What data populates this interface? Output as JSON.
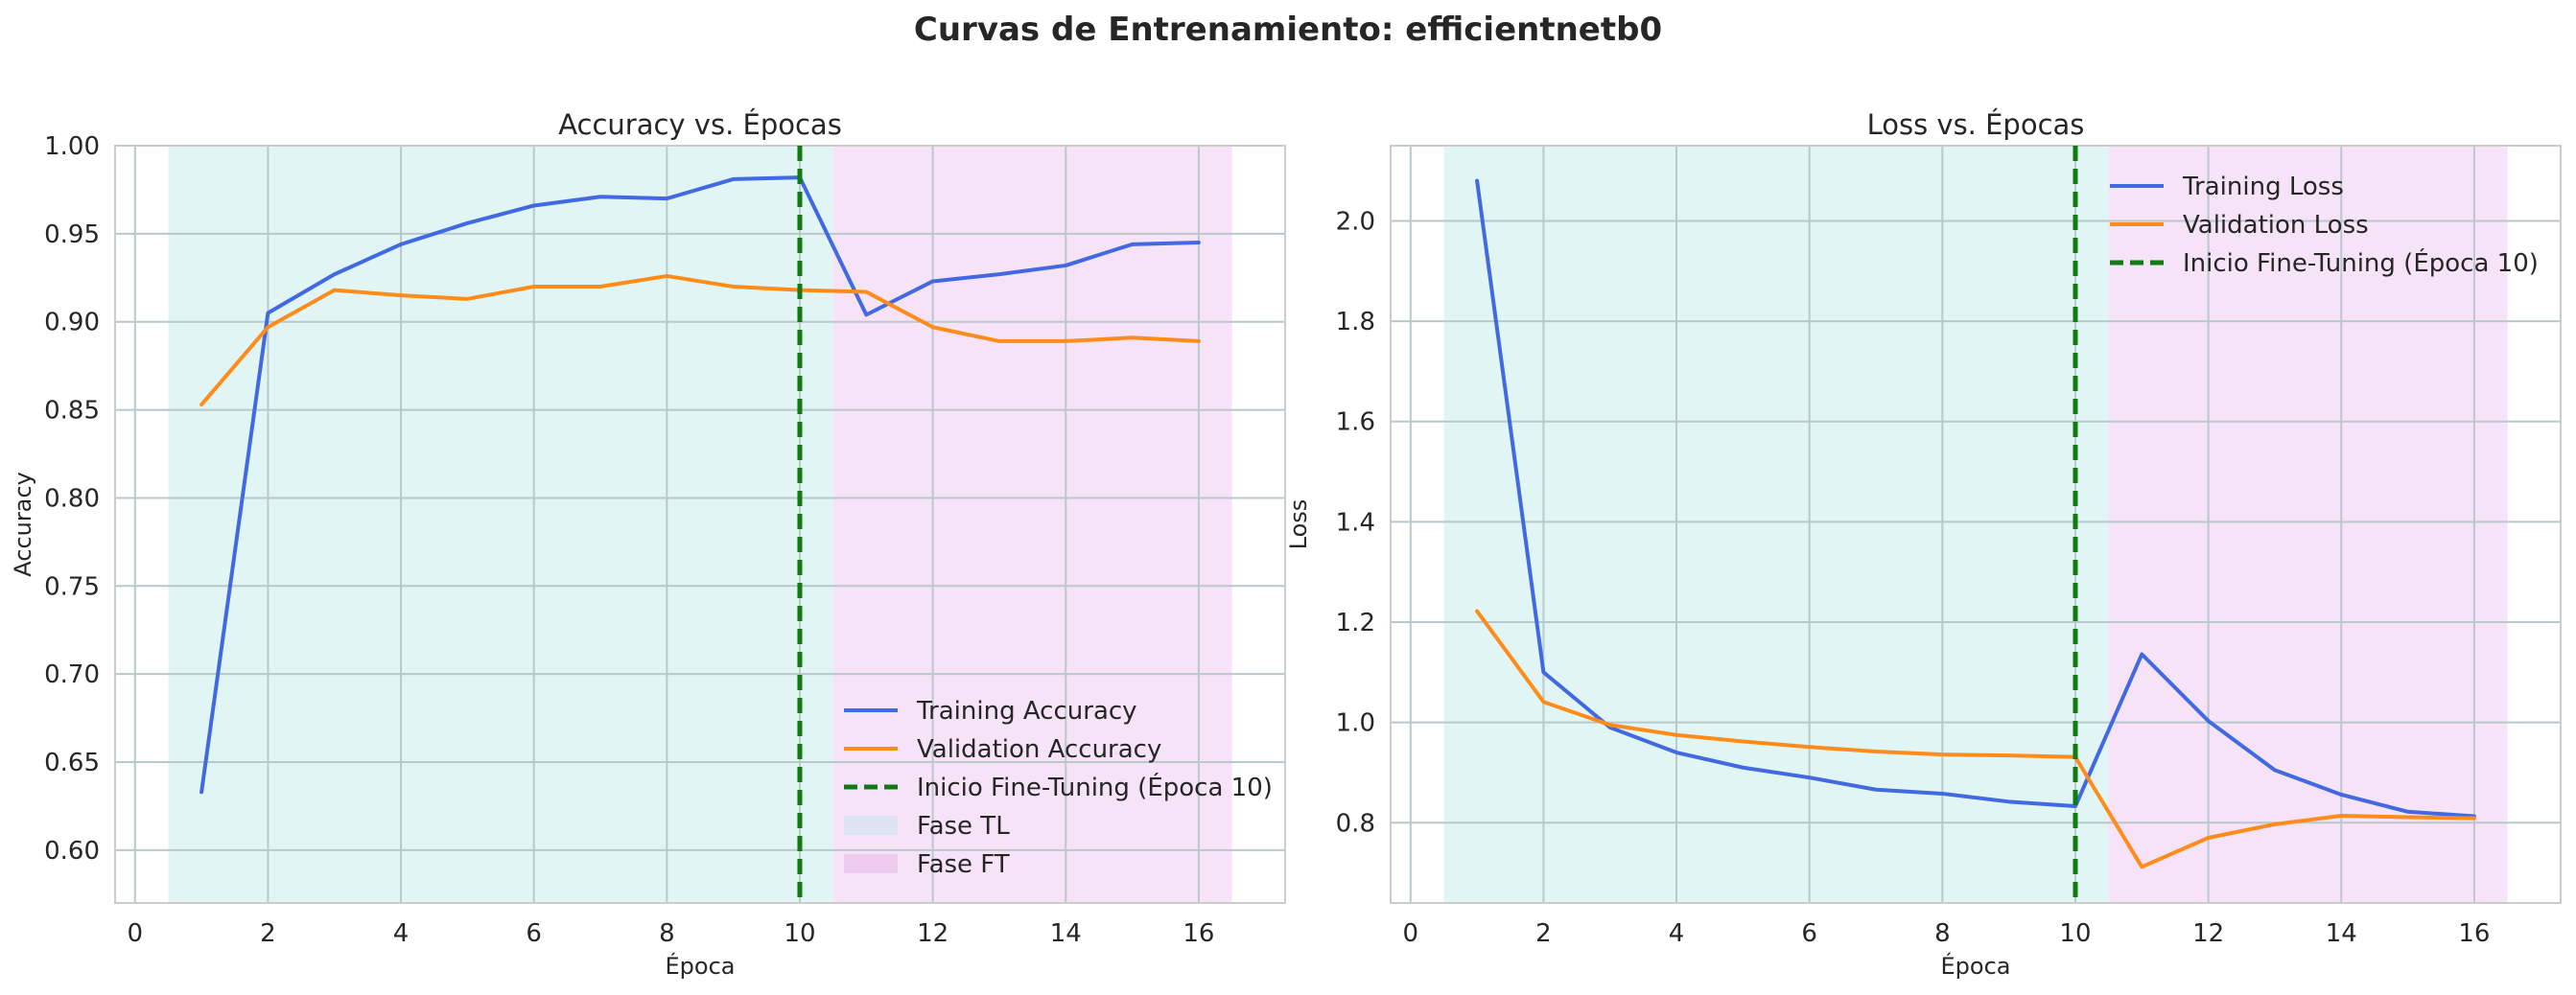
{
  "figure": {
    "title": "Curvas de Entrenamiento: efficientnetb0"
  },
  "colors": {
    "training": "#4169e1",
    "validation": "#ff8c1a",
    "finetune_line": "#127a12",
    "phase_tl": "#e1f5f4",
    "phase_ft": "#f6e3f7",
    "grid": "#b8c8cc",
    "axes_edge": "#cccccc",
    "text": "#262626"
  },
  "chart_data": [
    {
      "type": "line",
      "title": "Accuracy vs. Épocas",
      "xlabel": "Época",
      "ylabel": "Accuracy",
      "xlim": [
        -0.3,
        17.3
      ],
      "ylim": [
        0.57,
        1.0
      ],
      "xticks": [
        0,
        2,
        4,
        6,
        8,
        10,
        12,
        14,
        16
      ],
      "yticks": [
        0.6,
        0.65,
        0.7,
        0.75,
        0.8,
        0.85,
        0.9,
        0.95,
        1.0
      ],
      "ytick_labels": [
        "0.60",
        "0.65",
        "0.70",
        "0.75",
        "0.80",
        "0.85",
        "0.90",
        "0.95",
        "1.00"
      ],
      "grid": true,
      "legend_position": "lower-right",
      "phases": [
        {
          "name": "Fase TL",
          "x_start": 0.5,
          "x_end": 10.5,
          "color_key": "phase_tl"
        },
        {
          "name": "Fase FT",
          "x_start": 10.5,
          "x_end": 16.5,
          "color_key": "phase_ft"
        }
      ],
      "vline": {
        "x": 10,
        "label": "Inicio Fine-Tuning (Época 10)"
      },
      "x": [
        1,
        2,
        3,
        4,
        5,
        6,
        7,
        8,
        9,
        10,
        11,
        12,
        13,
        14,
        15,
        16
      ],
      "series": [
        {
          "name": "Training Accuracy",
          "color_key": "training",
          "values": [
            0.633,
            0.905,
            0.927,
            0.944,
            0.956,
            0.966,
            0.971,
            0.97,
            0.981,
            0.982,
            0.904,
            0.923,
            0.927,
            0.932,
            0.944,
            0.945
          ]
        },
        {
          "name": "Validation Accuracy",
          "color_key": "validation",
          "values": [
            0.853,
            0.897,
            0.918,
            0.915,
            0.913,
            0.92,
            0.92,
            0.926,
            0.92,
            0.918,
            0.917,
            0.897,
            0.889,
            0.889,
            0.891,
            0.889
          ]
        }
      ]
    },
    {
      "type": "line",
      "title": "Loss vs. Épocas",
      "xlabel": "Época",
      "ylabel": "Loss",
      "xlim": [
        -0.3,
        17.3
      ],
      "ylim": [
        0.64,
        2.15
      ],
      "xticks": [
        0,
        2,
        4,
        6,
        8,
        10,
        12,
        14,
        16
      ],
      "yticks": [
        0.8,
        1.0,
        1.2,
        1.4,
        1.6,
        1.8,
        2.0
      ],
      "ytick_labels": [
        "0.8",
        "1.0",
        "1.2",
        "1.4",
        "1.6",
        "1.8",
        "2.0"
      ],
      "grid": true,
      "legend_position": "upper-right",
      "phases": [
        {
          "name": "Fase TL",
          "x_start": 0.5,
          "x_end": 10.5,
          "color_key": "phase_tl"
        },
        {
          "name": "Fase FT",
          "x_start": 10.5,
          "x_end": 16.5,
          "color_key": "phase_ft"
        }
      ],
      "vline": {
        "x": 10,
        "label": "Inicio Fine-Tuning (Época 10)"
      },
      "x": [
        1,
        2,
        3,
        4,
        5,
        6,
        7,
        8,
        9,
        10,
        11,
        12,
        13,
        14,
        15,
        16
      ],
      "series": [
        {
          "name": "Training Loss",
          "color_key": "training",
          "values": [
            2.08,
            1.1,
            0.99,
            0.94,
            0.91,
            0.89,
            0.866,
            0.858,
            0.842,
            0.833,
            1.136,
            1.003,
            0.905,
            0.856,
            0.822,
            0.813
          ]
        },
        {
          "name": "Validation Loss",
          "color_key": "validation",
          "values": [
            1.222,
            1.041,
            0.995,
            0.975,
            0.962,
            0.951,
            0.942,
            0.936,
            0.934,
            0.931,
            0.712,
            0.77,
            0.797,
            0.814,
            0.811,
            0.809
          ]
        }
      ]
    }
  ]
}
